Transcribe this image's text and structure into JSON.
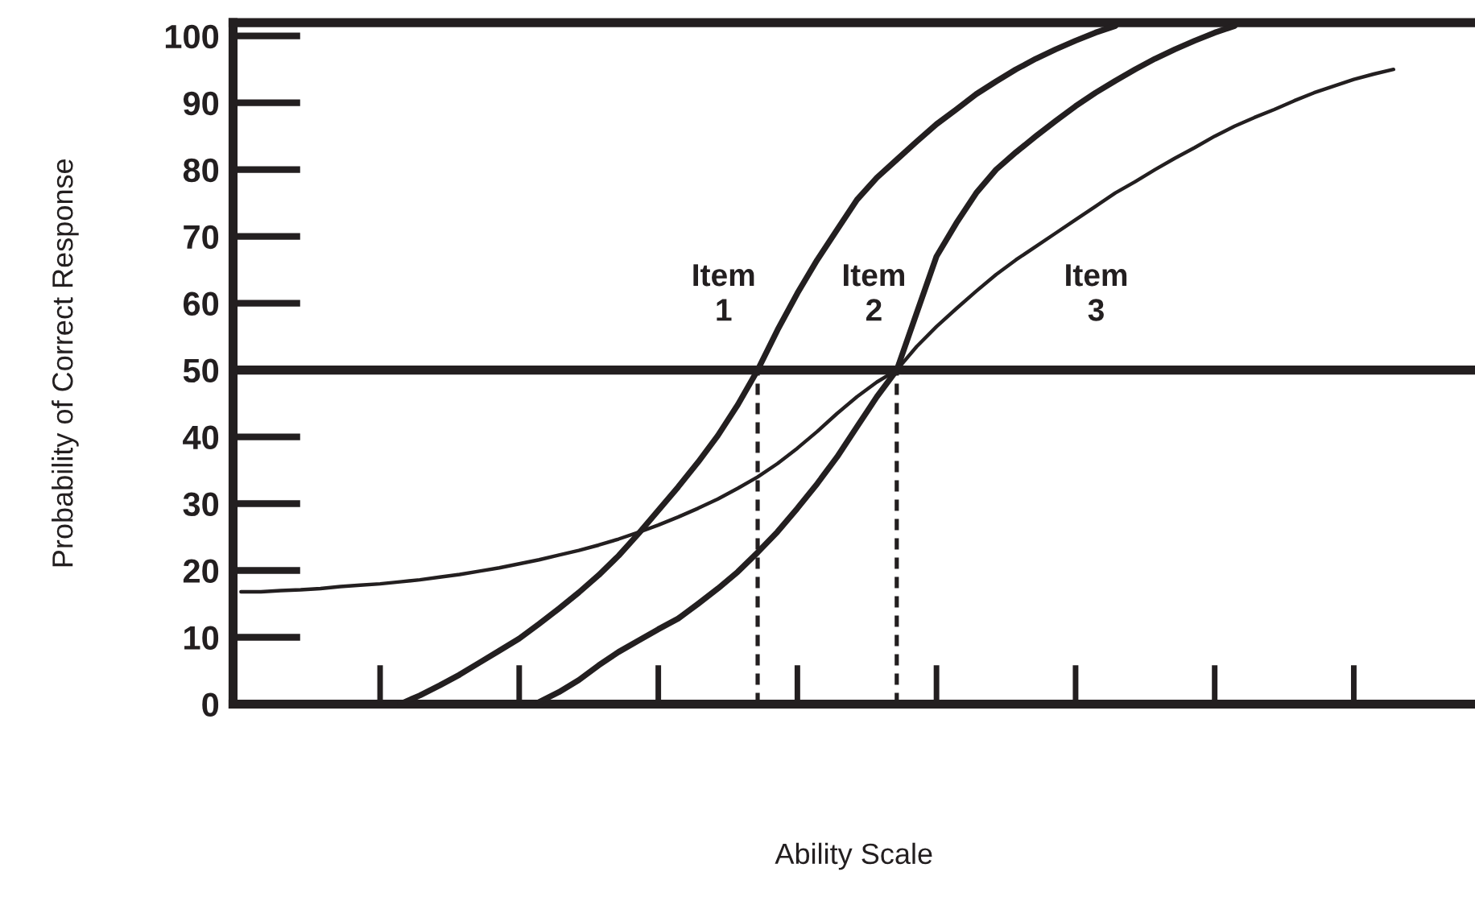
{
  "chart_data": {
    "type": "line",
    "xlabel": "Ability Scale",
    "ylabel": "Probability of Correct Response",
    "categories": [
      null,
      null,
      null,
      null,
      null,
      null,
      null,
      null,
      null,
      null,
      null,
      null,
      null,
      null,
      null,
      null,
      null,
      null,
      null,
      null,
      null,
      null,
      null,
      null,
      null,
      null,
      null,
      null,
      null,
      null,
      null,
      null,
      null,
      null,
      null,
      null,
      null,
      null,
      null,
      null,
      null,
      null,
      null,
      null,
      null,
      null,
      null,
      null,
      null,
      null,
      null,
      null,
      null,
      null,
      null,
      null,
      null,
      null,
      null
    ],
    "series": [
      {
        "name": "Item 1",
        "color": "#231f20",
        "values": [
          null,
          null,
          null,
          null,
          null,
          null,
          null,
          null,
          0,
          1.3,
          2.8,
          4.4,
          6.2,
          8.0,
          9.8,
          12,
          14.3,
          16.7,
          19.3,
          22.2,
          25.5,
          29,
          32.5,
          36.2,
          40.2,
          44.8,
          50,
          56,
          61.5,
          66.5,
          71,
          75.5,
          78.8,
          81.5,
          84.2,
          86.8,
          89,
          91.3,
          93.2,
          95,
          96.6,
          98,
          99.3,
          100.5,
          101.5,
          null,
          null,
          null,
          null,
          null,
          null,
          null,
          null,
          null,
          null,
          null,
          null,
          null,
          null
        ]
      },
      {
        "name": "Item 2",
        "color": "#231f20",
        "values": [
          null,
          null,
          null,
          null,
          null,
          null,
          null,
          null,
          null,
          null,
          null,
          null,
          null,
          null,
          null,
          0.3,
          1.8,
          3.6,
          5.8,
          7.8,
          9.5,
          11.2,
          12.8,
          15,
          17.3,
          19.8,
          22.7,
          25.8,
          29.3,
          33,
          37,
          41.5,
          46,
          50,
          58.5,
          67,
          72,
          76.5,
          80,
          82.6,
          85,
          87.3,
          89.5,
          91.5,
          93.3,
          95,
          96.6,
          98,
          99.3,
          100.5,
          101.5,
          null,
          null,
          null,
          null,
          null,
          null,
          null,
          null
        ]
      },
      {
        "name": "Item 3",
        "color": "#231f20",
        "values": [
          16.8,
          16.8,
          17,
          17.1,
          17.3,
          17.6,
          17.8,
          18,
          18.3,
          18.6,
          19,
          19.4,
          19.9,
          20.4,
          21,
          21.6,
          22.3,
          23,
          23.8,
          24.7,
          25.7,
          26.8,
          28,
          29.3,
          30.7,
          32.3,
          34,
          36,
          38.3,
          40.8,
          43.5,
          46,
          48.2,
          50,
          53.5,
          56.5,
          59.2,
          61.8,
          64.3,
          66.5,
          68.5,
          70.5,
          72.5,
          74.5,
          76.5,
          78.2,
          80,
          81.7,
          83.3,
          85,
          86.5,
          87.8,
          89,
          90.3,
          91.5,
          92.5,
          93.5,
          94.3,
          95
        ]
      }
    ],
    "ylim": [
      0,
      102
    ],
    "yticks": [
      0,
      10,
      20,
      30,
      40,
      50,
      60,
      70,
      80,
      90,
      100
    ],
    "tick_labels": "y",
    "ref_lines": [
      {
        "axis": "y",
        "value": 50,
        "color": "#231f20",
        "line_style": "solid"
      }
    ],
    "grid": false,
    "legend": false,
    "marker": "none",
    "line_style": "solid"
  }
}
